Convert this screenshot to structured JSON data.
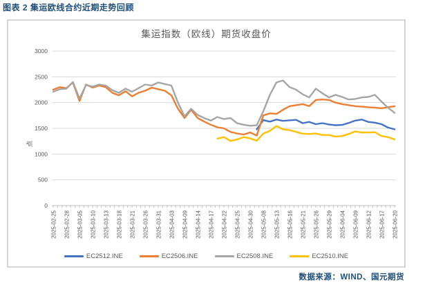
{
  "figure": {
    "caption": "图表 2 集运欧线合约近期走势回顾",
    "source": "数据来源：WIND、国元期货",
    "caption_color": "#1F4E79"
  },
  "chart_data": {
    "type": "line",
    "title": "集运指数（欧线）期货收盘价",
    "ylabel": "点",
    "ylim": [
      0,
      3000
    ],
    "yticks": [
      0,
      500,
      1000,
      1500,
      2000,
      2500,
      3000
    ],
    "grid": true,
    "legend_position": "bottom",
    "axis_text_color": "#595959",
    "gridline_color": "#D9D9D9",
    "x_labels": [
      "2025-02-25",
      "2025-02-28",
      "2025-03-05",
      "2025-03-10",
      "2025-03-13",
      "2025-03-18",
      "2025-03-21",
      "2025-03-26",
      "2025-03-31",
      "2025-04-03",
      "2025-04-09",
      "2025-04-14",
      "2025-04-17",
      "2025-04-22",
      "2025-04-25",
      "2025-04-30",
      "2025-05-08",
      "2025-05-13",
      "2025-05-16",
      "2025-05-21",
      "2025-05-26",
      "2025-05-29",
      "2025-06-04",
      "2025-06-09",
      "2025-06-12",
      "2025-06-17",
      "2025-06-20"
    ],
    "points_per_label": 2,
    "series": [
      {
        "name": "EC2512.INE",
        "color": "#4472C4",
        "values": [
          null,
          null,
          null,
          null,
          null,
          null,
          null,
          null,
          null,
          null,
          null,
          null,
          null,
          null,
          null,
          null,
          null,
          null,
          null,
          null,
          null,
          null,
          null,
          null,
          null,
          null,
          null,
          null,
          null,
          null,
          null,
          1480,
          1660,
          1630,
          1670,
          1645,
          1655,
          1665,
          1600,
          1625,
          1580,
          1600,
          1575,
          1560,
          1565,
          1605,
          1650,
          1670,
          1625,
          1610,
          1580,
          1515,
          1480
        ]
      },
      {
        "name": "EC2506.INE",
        "color": "#ED7D31",
        "values": [
          2250,
          2300,
          2280,
          2390,
          2030,
          2350,
          2290,
          2330,
          2300,
          2190,
          2140,
          2220,
          2120,
          2190,
          2230,
          2290,
          2260,
          2230,
          2140,
          1880,
          1700,
          1860,
          1700,
          1630,
          1570,
          1520,
          1500,
          1430,
          1400,
          1380,
          1420,
          1360,
          1750,
          1790,
          1780,
          1860,
          1930,
          1950,
          1970,
          1930,
          2050,
          2060,
          2050,
          2000,
          1970,
          1950,
          1930,
          1920,
          1910,
          1900,
          1890,
          1910,
          1930
        ]
      },
      {
        "name": "EC2508.INE",
        "color": "#A5A5A5",
        "values": [
          2210,
          2260,
          2270,
          2400,
          2080,
          2340,
          2310,
          2350,
          2330,
          2240,
          2190,
          2270,
          2210,
          2280,
          2350,
          2330,
          2390,
          2360,
          2330,
          2000,
          1730,
          1880,
          1760,
          1700,
          1650,
          1720,
          1680,
          1700,
          1600,
          1570,
          1550,
          1560,
          1830,
          2150,
          2390,
          2430,
          2300,
          2250,
          2160,
          2100,
          2270,
          2180,
          2100,
          2150,
          2110,
          2060,
          2070,
          2100,
          2110,
          2150,
          2020,
          1900,
          1800
        ]
      },
      {
        "name": "EC2510.INE",
        "color": "#FFC000",
        "values": [
          null,
          null,
          null,
          null,
          null,
          null,
          null,
          null,
          null,
          null,
          null,
          null,
          null,
          null,
          null,
          null,
          null,
          null,
          null,
          null,
          null,
          null,
          null,
          null,
          null,
          1300,
          1330,
          1255,
          1285,
          1330,
          1305,
          1260,
          1400,
          1450,
          1545,
          1480,
          1465,
          1430,
          1395,
          1390,
          1400,
          1370,
          1370,
          1340,
          1350,
          1390,
          1440,
          1420,
          1420,
          1425,
          1350,
          1330,
          1285
        ]
      }
    ]
  }
}
